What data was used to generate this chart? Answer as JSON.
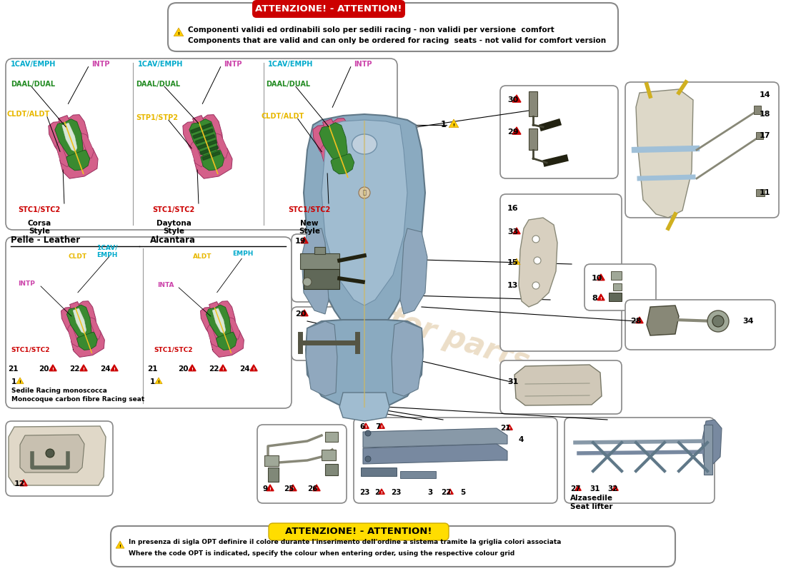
{
  "bg_color": "#ffffff",
  "top_banner_text": "ATTENZIONE! - ATTENTION!",
  "top_banner_bg": "#cc0000",
  "top_banner_fg": "#ffffff",
  "top_note1": "Componenti validi ed ordinabili solo per sedili racing - non validi per versione  comfort",
  "top_note2": "Components that are valid and can only be ordered for racing  seats - not valid for comfort version",
  "bottom_banner_text": "ATTENZIONE! - ATTENTION!",
  "bottom_banner_bg": "#ffdd00",
  "bottom_note1": "In presenza di sigla OPT definire il colore durante l'inserimento dell'ordine a sistema tramite la griglia colori associata",
  "bottom_note2": "Where the code OPT is indicated, specify the colour when entering order, using the respective colour grid",
  "watermark": "a passion for parts",
  "pink": "#d4608a",
  "green": "#3a8a30",
  "yellow_lbl": "#e8b800",
  "red_lbl": "#cc0000",
  "cyan_lbl": "#00aacc",
  "magenta_lbl": "#cc44aa",
  "green_lbl": "#228b22",
  "blue_seat": "#8aaac0",
  "blue_seat2": "#a0bcd0"
}
